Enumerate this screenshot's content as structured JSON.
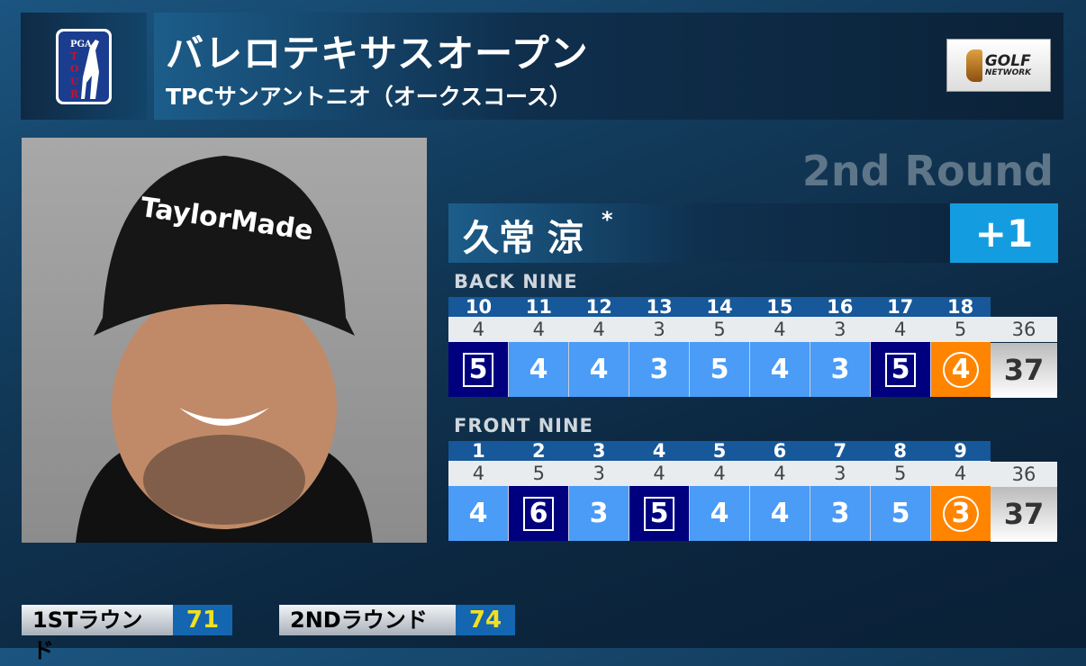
{
  "header": {
    "title": "バレロテキサスオープン",
    "subtitle": "TPCサンアントニオ（オークスコース）",
    "tour_logo": "PGA TOUR",
    "network_logo": "GOLF NETWORK"
  },
  "round_label": "2nd Round",
  "player": {
    "name": "久常 涼",
    "marker": "*",
    "to_par": "+1"
  },
  "back_nine": {
    "label": "BACK NINE",
    "holes": [
      "10",
      "11",
      "12",
      "13",
      "14",
      "15",
      "16",
      "17",
      "18"
    ],
    "pars": [
      "4",
      "4",
      "4",
      "3",
      "5",
      "4",
      "3",
      "4",
      "5"
    ],
    "scores": [
      "5",
      "4",
      "4",
      "3",
      "5",
      "4",
      "3",
      "5",
      "4"
    ],
    "types": [
      "bogey",
      "par",
      "par",
      "par",
      "par",
      "par",
      "par",
      "bogey",
      "birdie"
    ],
    "total_par": "36",
    "total": "37"
  },
  "front_nine": {
    "label": "FRONT NINE",
    "holes": [
      "1",
      "2",
      "3",
      "4",
      "5",
      "6",
      "7",
      "8",
      "9"
    ],
    "pars": [
      "4",
      "5",
      "3",
      "4",
      "4",
      "4",
      "3",
      "5",
      "4"
    ],
    "scores": [
      "4",
      "6",
      "3",
      "5",
      "4",
      "4",
      "3",
      "5",
      "3"
    ],
    "types": [
      "par",
      "bogey",
      "par",
      "bogey",
      "par",
      "par",
      "par",
      "par",
      "birdie"
    ],
    "total_par": "36",
    "total": "37"
  },
  "rounds": [
    {
      "label": "1STラウンド",
      "score": "71"
    },
    {
      "label": "2NDラウンド",
      "score": "74"
    }
  ],
  "colors": {
    "par": "#4a9cf6",
    "bogey": "#00007f",
    "birdie": "#ff8400",
    "to_par": "#139de0"
  }
}
